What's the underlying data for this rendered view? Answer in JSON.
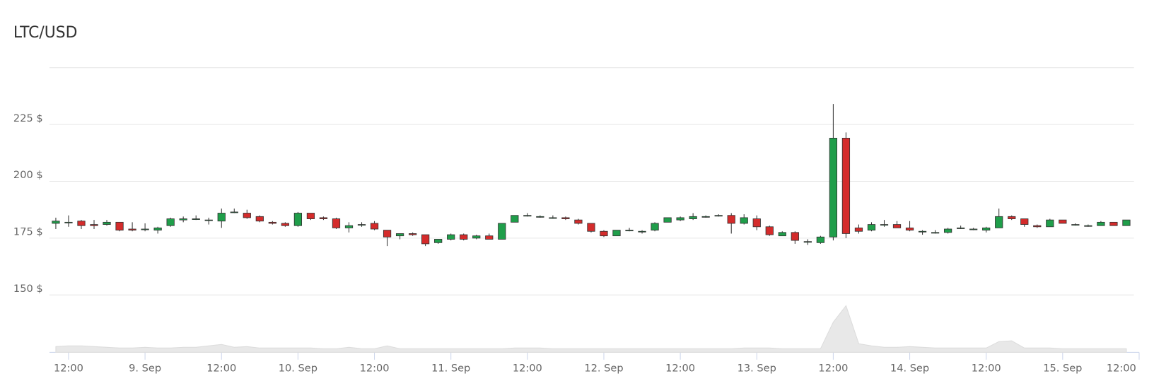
{
  "chart_data": {
    "type": "candlestick",
    "title": "LTC/USD",
    "up_color": "#1f9e4a",
    "down_color": "#d42b2b",
    "ylim": [
      150,
      250
    ],
    "yticks": [
      {
        "value": 150,
        "label": "150 $"
      },
      {
        "value": 175,
        "label": "175 $"
      },
      {
        "value": 200,
        "label": "200 $"
      },
      {
        "value": 225,
        "label": "225 $"
      }
    ],
    "xlim": [
      9,
      180
    ],
    "xticks": [
      {
        "value": 12,
        "label": "12:00"
      },
      {
        "value": 24,
        "label": "9. Sep"
      },
      {
        "value": 36,
        "label": "12:00"
      },
      {
        "value": 48,
        "label": "10. Sep"
      },
      {
        "value": 60,
        "label": "12:00"
      },
      {
        "value": 72,
        "label": "11. Sep"
      },
      {
        "value": 84,
        "label": "12:00"
      },
      {
        "value": 96,
        "label": "12. Sep"
      },
      {
        "value": 108,
        "label": "12:00"
      },
      {
        "value": 120,
        "label": "13. Sep"
      },
      {
        "value": 132,
        "label": "12:00"
      },
      {
        "value": 144,
        "label": "14. Sep"
      },
      {
        "value": 156,
        "label": "12:00"
      },
      {
        "value": 168,
        "label": "15. Sep"
      },
      {
        "value": 180,
        "label": "12:00"
      }
    ],
    "x": [
      10,
      12,
      14,
      16,
      18,
      20,
      22,
      24,
      26,
      28,
      30,
      32,
      34,
      36,
      38,
      40,
      42,
      44,
      46,
      48,
      50,
      52,
      54,
      56,
      58,
      60,
      62,
      64,
      66,
      68,
      70,
      72,
      74,
      76,
      78,
      80,
      82,
      84,
      86,
      88,
      90,
      92,
      94,
      96,
      98,
      100,
      102,
      104,
      106,
      108,
      110,
      112,
      114,
      116,
      118,
      120,
      122,
      124,
      126,
      128,
      130,
      132,
      134,
      136,
      138,
      140,
      142,
      144,
      146,
      148,
      150,
      152,
      154,
      156,
      158,
      160,
      162,
      164,
      166,
      168,
      170,
      172,
      174,
      176,
      178
    ],
    "open": [
      181.5,
      182,
      182.5,
      181,
      181,
      182,
      179,
      179,
      178.5,
      180.5,
      183,
      183.5,
      183,
      182.5,
      186.5,
      186,
      184.5,
      182,
      181.5,
      180.5,
      186,
      184,
      183.5,
      179.5,
      181,
      181.5,
      178.5,
      176,
      177,
      176.5,
      173,
      174.5,
      176.5,
      175,
      176,
      174.5,
      182,
      185,
      184.5,
      184,
      184,
      183,
      181.5,
      178,
      176,
      178.5,
      178,
      178.5,
      182,
      183,
      183.5,
      184.5,
      185,
      185,
      181.5,
      183.5,
      180,
      176,
      177.5,
      173.5,
      173,
      175.5,
      219,
      179.5,
      178.5,
      181,
      181,
      179.5,
      178,
      177.5,
      177.5,
      179.5,
      179,
      178.5,
      179.5,
      184.5,
      183.5,
      180.5,
      180,
      183,
      181,
      180.5,
      180.5,
      182,
      180.5
    ],
    "high": [
      184,
      185,
      183,
      183,
      183,
      182,
      182,
      181.5,
      180,
      184,
      184.5,
      185,
      184,
      188,
      188,
      187.5,
      185,
      182.5,
      182,
      186.5,
      186,
      184.5,
      184,
      182,
      182,
      182.5,
      178.5,
      177,
      177.5,
      176.5,
      174.5,
      177,
      177,
      176.5,
      177,
      181.5,
      185,
      186,
      185,
      185,
      184.5,
      183.5,
      181.5,
      178.5,
      178.5,
      179.5,
      178.5,
      182,
      184,
      184.5,
      186,
      185,
      185.5,
      186,
      185.5,
      185,
      180.5,
      178,
      178,
      174.5,
      176,
      234,
      221.5,
      181,
      182,
      183,
      182.5,
      182.5,
      178.5,
      178.5,
      179.5,
      180.5,
      179.5,
      180,
      188,
      185,
      183.5,
      181,
      183.5,
      183,
      181.5,
      181,
      182.5,
      182,
      183
    ],
    "low": [
      179,
      180,
      179,
      179,
      180.5,
      178,
      178,
      178,
      177,
      180,
      182,
      183,
      181,
      179.5,
      186,
      183.5,
      182,
      181,
      180,
      180,
      183,
      183,
      179,
      177.5,
      180,
      178.5,
      171.5,
      174.5,
      176,
      171.5,
      172.5,
      174,
      174,
      174.5,
      174.5,
      174.5,
      182,
      184.5,
      184,
      183.5,
      183,
      181,
      177.5,
      175.5,
      176,
      178,
      177,
      178,
      182,
      182.5,
      183,
      184,
      184.5,
      177,
      181,
      178.5,
      176,
      176,
      172.5,
      172,
      172.5,
      174,
      175,
      177,
      178,
      180,
      179.5,
      178,
      176.5,
      177,
      177,
      179,
      178.5,
      177.5,
      179.5,
      183,
      180,
      179.5,
      180,
      181.5,
      180.5,
      180,
      180.5,
      180.5,
      180.5
    ],
    "close": [
      182.5,
      182,
      180.5,
      180.5,
      182,
      178.5,
      178.5,
      179,
      179.5,
      183.5,
      183.5,
      183.5,
      183,
      186,
      186.5,
      184,
      182.5,
      181.5,
      180.5,
      186,
      183.5,
      183.5,
      179.5,
      180.5,
      181,
      179,
      175.5,
      177,
      176.5,
      172.5,
      174.5,
      176.5,
      174.5,
      176,
      174.5,
      181.5,
      185,
      185,
      184.5,
      184,
      183.5,
      181.5,
      178,
      176,
      178.5,
      178.5,
      178,
      181.5,
      184,
      184,
      184.5,
      184.5,
      185,
      181.5,
      184,
      180,
      176.5,
      177.5,
      174,
      173.5,
      175.5,
      219,
      177,
      178,
      181,
      181,
      179.5,
      178.5,
      178,
      177.5,
      179,
      179.5,
      179,
      179.5,
      184.5,
      183.5,
      181,
      180,
      183,
      181.5,
      181,
      180.5,
      182,
      180.5,
      183
    ],
    "volume": [
      8,
      9,
      9,
      8,
      7,
      6,
      6,
      7,
      6,
      6,
      7,
      7,
      9,
      11,
      7,
      8,
      6,
      6,
      6,
      6,
      6,
      5,
      5,
      7,
      5,
      5,
      9,
      5,
      5,
      5,
      5,
      5,
      5,
      5,
      5,
      5,
      6,
      6,
      6,
      5,
      5,
      5,
      5,
      5,
      5,
      5,
      5,
      5,
      5,
      5,
      5,
      5,
      5,
      5,
      6,
      6,
      6,
      5,
      5,
      5,
      5,
      42,
      65,
      12,
      9,
      7,
      7,
      8,
      7,
      6,
      6,
      6,
      6,
      6,
      15,
      16,
      6,
      6,
      6,
      5,
      5,
      5,
      5,
      5,
      5
    ],
    "volume_lim": [
      0,
      80
    ]
  }
}
